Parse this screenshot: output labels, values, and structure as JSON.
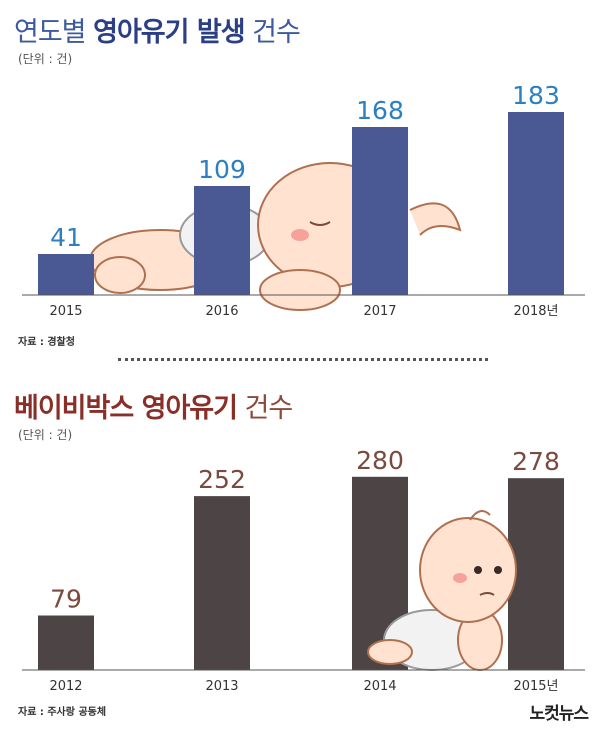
{
  "chart_data": [
    {
      "type": "bar",
      "title_normal_1": "연도별 ",
      "title_bold": "영아유기 발생",
      "title_normal_2": " 건수",
      "unit": "(단위 : 건)",
      "source": "자료 : 경찰청",
      "categories": [
        "2015",
        "2016",
        "2017",
        "2018년"
      ],
      "values": [
        41,
        109,
        168,
        183
      ],
      "ylim": [
        0,
        200
      ],
      "grid": false,
      "legend": "none",
      "colors": {
        "bar": "#4a5994",
        "value": "#2c7fc1",
        "title_light": "#3d5aa0",
        "title_bold": "#2b3f86"
      }
    },
    {
      "type": "bar",
      "title_bold": "베이비박스 영아유기",
      "title_normal": " 건수",
      "unit": "(단위 : 건)",
      "source": "자료 : 주사랑 공동체",
      "categories": [
        "2012",
        "2013",
        "2014",
        "2015년"
      ],
      "values": [
        79,
        252,
        280,
        278
      ],
      "ylim": [
        0,
        300
      ],
      "grid": false,
      "legend": "none",
      "colors": {
        "bar": "#4d4545",
        "value": "#7a4a3e",
        "title_light": "#8a4a3a",
        "title_bold": "#8a2f28"
      }
    }
  ],
  "logo_text": "노컷뉴스"
}
